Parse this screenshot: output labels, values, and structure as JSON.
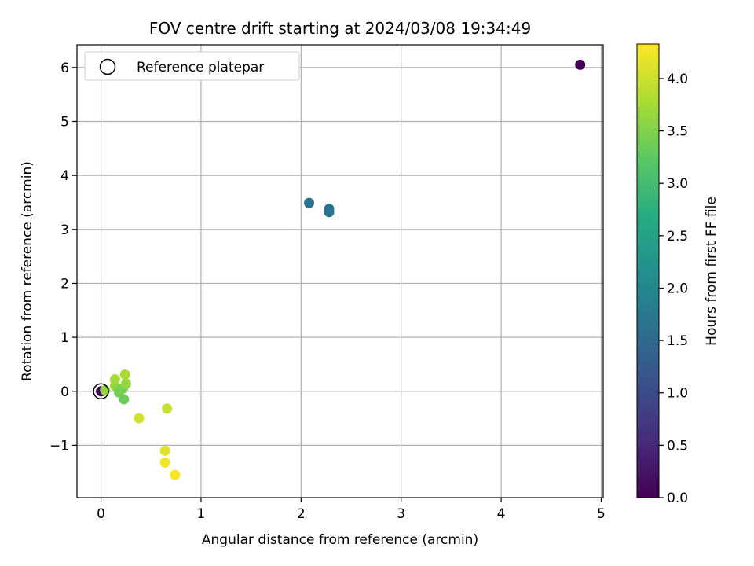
{
  "chart_data": {
    "type": "scatter",
    "title": "FOV centre drift starting at 2024/03/08 19:34:49",
    "xlabel": "Angular distance from reference (arcmin)",
    "ylabel": "Rotation from reference (arcmin)",
    "xlim": [
      -0.24,
      5.02
    ],
    "ylim": [
      -1.97,
      6.42
    ],
    "xticks": [
      0,
      1,
      2,
      3,
      4,
      5
    ],
    "xtick_labels": [
      "0",
      "1",
      "2",
      "3",
      "4",
      "5"
    ],
    "yticks": [
      -1,
      0,
      1,
      2,
      3,
      4,
      5,
      6
    ],
    "ytick_labels": [
      "−1",
      "0",
      "1",
      "2",
      "3",
      "4",
      "5",
      "6"
    ],
    "grid": true,
    "legend": {
      "position": "top-left",
      "entries": [
        "Reference platepar"
      ]
    },
    "reference_point": {
      "x": 0,
      "y": 0
    },
    "colorbar": {
      "label": "Hours from first FF file",
      "range": [
        0.0,
        4.33
      ],
      "ticks": [
        0.0,
        0.5,
        1.0,
        1.5,
        2.0,
        2.5,
        3.0,
        3.5,
        4.0
      ],
      "tick_labels": [
        "0.0",
        "0.5",
        "1.0",
        "1.5",
        "2.0",
        "2.5",
        "3.0",
        "3.5",
        "4.0"
      ],
      "colormap": "viridis"
    },
    "points": [
      {
        "x": 4.79,
        "y": 6.05,
        "hours": 0.0
      },
      {
        "x": 2.08,
        "y": 3.49,
        "hours": 1.65
      },
      {
        "x": 2.28,
        "y": 3.38,
        "hours": 1.6
      },
      {
        "x": 2.28,
        "y": 3.32,
        "hours": 1.62
      },
      {
        "x": 0.0,
        "y": 0.0,
        "hours": 0.05
      },
      {
        "x": 0.04,
        "y": 0.02,
        "hours": 3.6
      },
      {
        "x": 0.14,
        "y": 0.22,
        "hours": 3.75
      },
      {
        "x": 0.14,
        "y": 0.1,
        "hours": 3.7
      },
      {
        "x": 0.17,
        "y": 0.05,
        "hours": 3.55
      },
      {
        "x": 0.18,
        "y": -0.02,
        "hours": 3.4
      },
      {
        "x": 0.22,
        "y": 0.05,
        "hours": 3.45
      },
      {
        "x": 0.24,
        "y": 0.31,
        "hours": 3.8
      },
      {
        "x": 0.25,
        "y": 0.14,
        "hours": 3.65
      },
      {
        "x": 0.23,
        "y": -0.15,
        "hours": 3.35
      },
      {
        "x": 0.38,
        "y": -0.5,
        "hours": 4.05
      },
      {
        "x": 0.66,
        "y": -0.32,
        "hours": 4.0
      },
      {
        "x": 0.64,
        "y": -1.1,
        "hours": 4.15
      },
      {
        "x": 0.64,
        "y": -1.32,
        "hours": 4.25
      },
      {
        "x": 0.74,
        "y": -1.55,
        "hours": 4.3
      }
    ]
  }
}
